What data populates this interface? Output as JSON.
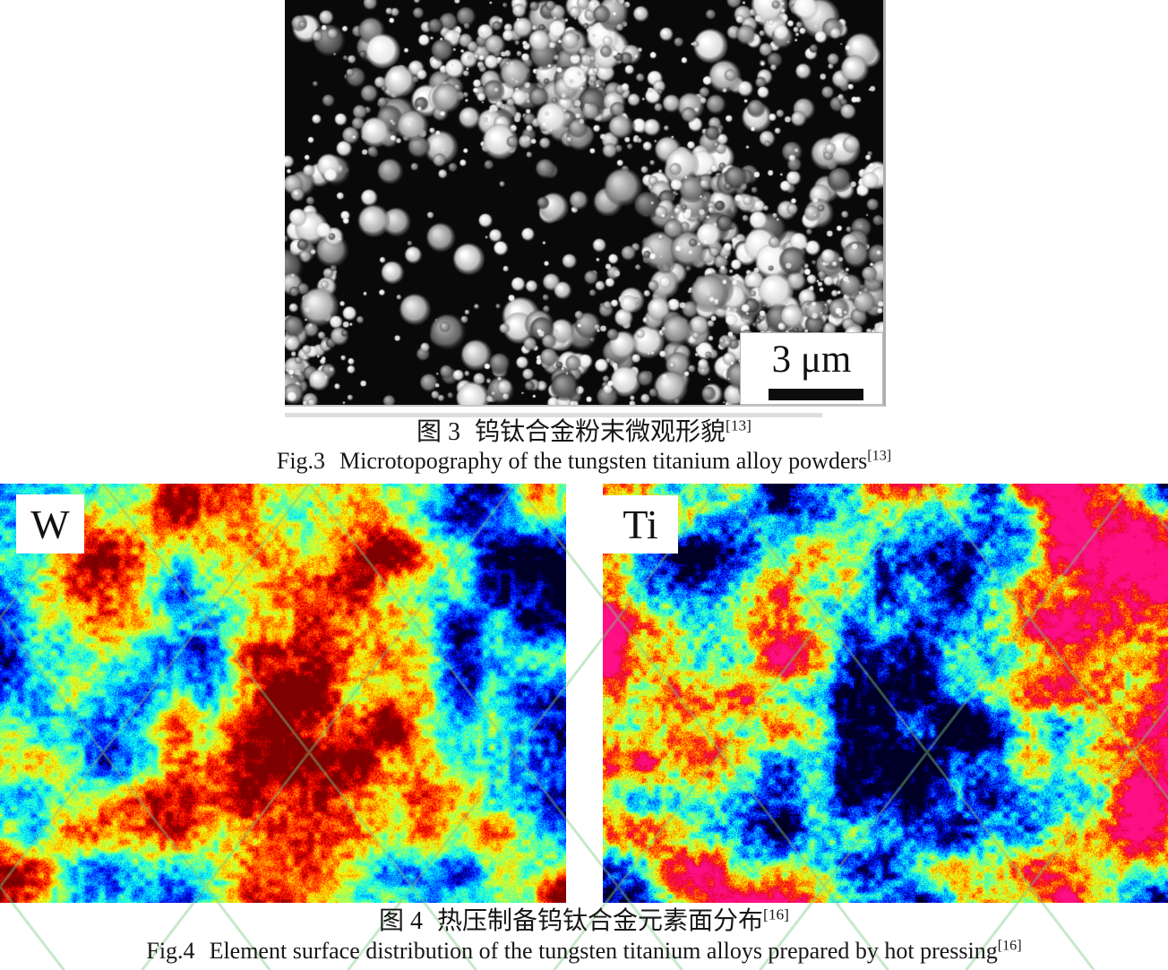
{
  "figure3": {
    "scale_bar": {
      "label": "3 μm"
    },
    "caption_zh": {
      "prefix": "图 3",
      "title": "钨钛合金粉末微观形貌",
      "ref": "[13]"
    },
    "caption_en": {
      "prefix": "Fig.3",
      "title": "Microtopography of the tungsten titanium alloy powders",
      "ref": "[13]"
    }
  },
  "figure4": {
    "panels": [
      {
        "label": "W"
      },
      {
        "label": "Ti"
      }
    ],
    "caption_zh": {
      "prefix": "图 4",
      "title": "热压制备钨钛合金元素面分布",
      "ref": "[16]"
    },
    "caption_en": {
      "prefix": "Fig.4",
      "title": "Element surface distribution of the tungsten titanium alloys prepared by hot pressing",
      "ref": "[16]"
    }
  },
  "colors": {
    "watermark_green": "#7cc87c",
    "scale_bar_black": "#0d0d0d",
    "page_background": "#ffffff"
  }
}
